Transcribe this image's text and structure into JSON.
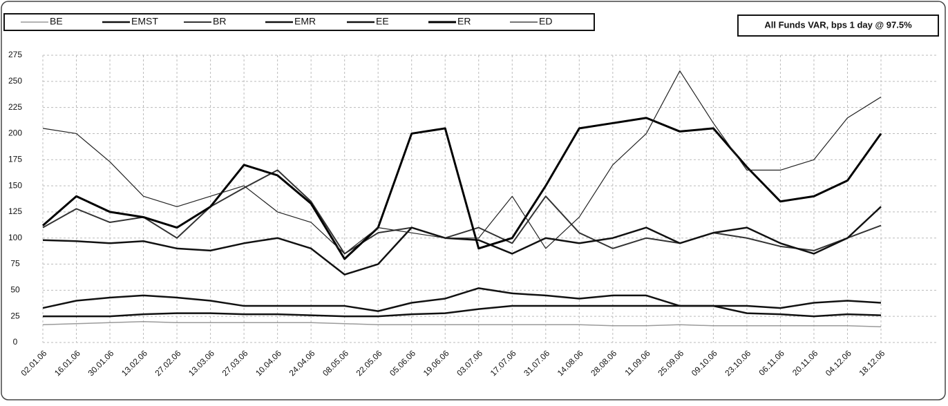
{
  "chart_data": {
    "type": "line",
    "title": "All Funds VAR, bps 1 day @ 97.5%",
    "categories": [
      "02.01.06",
      "16.01.06",
      "30.01.06",
      "13.02.06",
      "27.02.06",
      "13.03.06",
      "27.03.06",
      "10.04.06",
      "24.04.06",
      "08.05.06",
      "22.05.06",
      "05.06.06",
      "19.06.06",
      "03.07.06",
      "17.07.06",
      "31.07.06",
      "14.08.06",
      "28.08.06",
      "11.09.06",
      "25.09.06",
      "09.10.06",
      "23.10.06",
      "06.11.06",
      "20.11.06",
      "04.12.06",
      "18.12.06"
    ],
    "series": [
      {
        "name": "BE",
        "color": "#9a9a9a",
        "width": 1.5,
        "values": [
          17,
          18,
          19,
          20,
          19,
          19,
          19,
          19,
          19,
          18,
          17,
          17,
          17,
          17,
          17,
          17,
          17,
          16,
          16,
          17,
          16,
          16,
          16,
          16,
          16,
          15
        ]
      },
      {
        "name": "EMST",
        "color": "#111111",
        "width": 2.5,
        "values": [
          25,
          25,
          25,
          27,
          28,
          28,
          27,
          27,
          26,
          25,
          25,
          27,
          28,
          32,
          35,
          35,
          35,
          35,
          35,
          35,
          35,
          28,
          27,
          25,
          27,
          26
        ]
      },
      {
        "name": "BR",
        "color": "#333333",
        "width": 2,
        "values": [
          110,
          128,
          115,
          120,
          100,
          130,
          148,
          165,
          135,
          85,
          105,
          110,
          100,
          110,
          95,
          140,
          105,
          90,
          100,
          95,
          105,
          100,
          92,
          88,
          100,
          112
        ]
      },
      {
        "name": "EMR",
        "color": "#111111",
        "width": 2.5,
        "values": [
          98,
          97,
          95,
          97,
          90,
          88,
          95,
          100,
          90,
          65,
          75,
          110,
          100,
          98,
          85,
          100,
          95,
          100,
          110,
          95,
          105,
          110,
          95,
          85,
          100,
          130
        ]
      },
      {
        "name": "EE",
        "color": "#111111",
        "width": 2.5,
        "values": [
          33,
          40,
          43,
          45,
          43,
          40,
          35,
          35,
          35,
          35,
          30,
          38,
          42,
          52,
          47,
          45,
          42,
          45,
          45,
          35,
          35,
          35,
          33,
          38,
          40,
          38
        ]
      },
      {
        "name": "ER",
        "color": "#000000",
        "width": 3,
        "values": [
          112,
          140,
          125,
          120,
          110,
          130,
          170,
          160,
          133,
          80,
          110,
          200,
          205,
          90,
          100,
          150,
          205,
          210,
          215,
          202,
          205,
          168,
          135,
          140,
          155,
          200
        ]
      },
      {
        "name": "ED",
        "color": "#222222",
        "width": 1.2,
        "values": [
          205,
          200,
          173,
          140,
          130,
          140,
          150,
          125,
          115,
          85,
          110,
          105,
          100,
          100,
          140,
          90,
          120,
          170,
          200,
          260,
          210,
          165,
          165,
          175,
          215,
          235
        ]
      }
    ],
    "ylim": [
      0,
      275
    ],
    "yticks": [
      0,
      25,
      50,
      75,
      100,
      125,
      150,
      175,
      200,
      225,
      250,
      275
    ],
    "grid": true
  }
}
